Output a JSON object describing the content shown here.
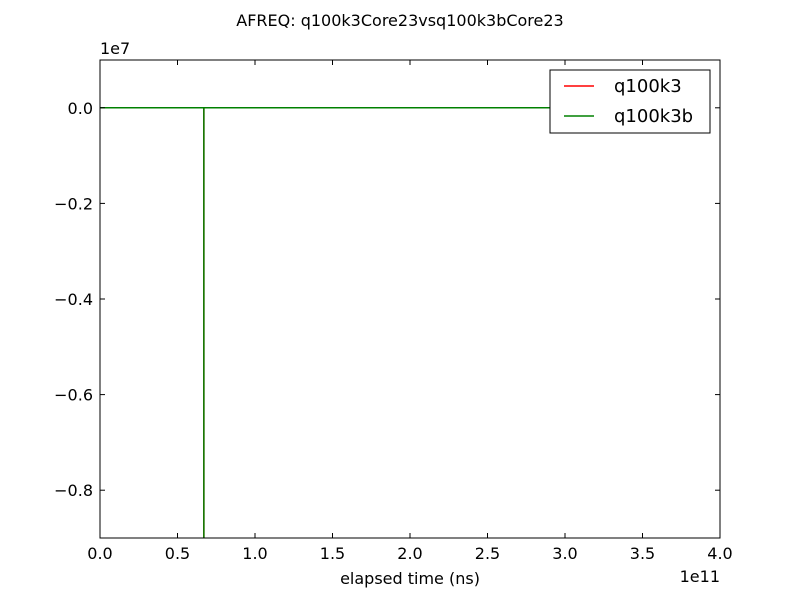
{
  "chart_data": {
    "type": "line",
    "title": "AFREQ: q100k3Core23vsq100k3bCore23",
    "xlabel": "elapsed time (ns)",
    "ylabel": "",
    "x_offset_label": "1e11",
    "y_offset_label": "1e7",
    "xlim": [
      0.0,
      4.0
    ],
    "ylim": [
      -0.9,
      0.1
    ],
    "x_ticks": [
      0.0,
      0.5,
      1.0,
      1.5,
      2.0,
      2.5,
      3.0,
      3.5,
      4.0
    ],
    "x_tick_labels": [
      "0.0",
      "0.5",
      "1.0",
      "1.5",
      "2.0",
      "2.5",
      "3.0",
      "3.5",
      "4.0"
    ],
    "y_ticks": [
      0.0,
      -0.2,
      -0.4,
      -0.6,
      -0.8
    ],
    "y_tick_labels": [
      "0.0",
      "−0.2",
      "−0.4",
      "−0.6",
      "−0.8"
    ],
    "legend_position": "top-right",
    "grid": false,
    "series": [
      {
        "name": "q100k3",
        "color": "#ff0000",
        "x": [
          0.0,
          0.67,
          0.67,
          0.67,
          3.0
        ],
        "y": [
          0.0,
          0.0,
          -0.9,
          0.0,
          0.0
        ]
      },
      {
        "name": "q100k3b",
        "color": "#008000",
        "x": [
          0.0,
          0.67,
          0.67,
          0.67,
          3.0
        ],
        "y": [
          0.0,
          0.0,
          -0.9,
          0.0,
          0.0
        ]
      }
    ]
  }
}
